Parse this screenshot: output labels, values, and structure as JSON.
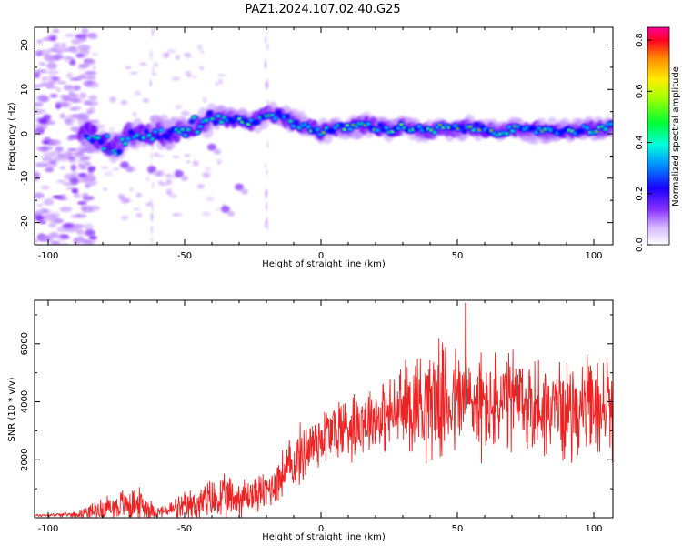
{
  "figure": {
    "title": "PAZ1.2024.107.02.40.G25"
  },
  "colors": {
    "snr_line": "#ee2222",
    "axes": "#000000",
    "colormap": [
      "#ffffff",
      "#b982ff",
      "#6a00ff",
      "#0000ff",
      "#00ffff",
      "#00ff22",
      "#ffff00",
      "#ff9900",
      "#ff0000",
      "#ff0099"
    ]
  },
  "chart_data": [
    {
      "type": "heatmap",
      "title": "PAZ1.2024.107.02.40.G25",
      "xlabel": "Height of straight line (km)",
      "ylabel": "Frequency (Hz)",
      "xlim": [
        -105,
        107
      ],
      "ylim": [
        -25,
        24
      ],
      "xticks": [
        -100,
        -50,
        0,
        50,
        100
      ],
      "yticks": [
        -20,
        -10,
        0,
        10,
        20
      ],
      "colorbar": {
        "label": "Normalized spectral amplitude",
        "range": [
          0,
          0.85
        ],
        "ticks": [
          0.0,
          0.2,
          0.4,
          0.6,
          0.8
        ]
      },
      "ridge": {
        "description_points_x": [
          -92,
          -85,
          -80,
          -75,
          -70,
          -65,
          -60,
          -55,
          -50,
          -45,
          -40,
          -35,
          -30,
          -25,
          -20,
          -15,
          -10,
          -5,
          0,
          5,
          10,
          15,
          20,
          25,
          30,
          35,
          40,
          45,
          50,
          55,
          60,
          65,
          70,
          75,
          80,
          85,
          90,
          95,
          100,
          105
        ],
        "frequency_hz": [
          1.0,
          0.5,
          -2.0,
          -3.0,
          0.0,
          -0.5,
          0.5,
          -0.5,
          1.5,
          2.0,
          3.0,
          3.5,
          3.0,
          2.5,
          4.5,
          4.0,
          2.5,
          1.5,
          0.5,
          1.0,
          1.5,
          2.0,
          1.5,
          1.0,
          1.5,
          1.0,
          0.5,
          1.5,
          1.0,
          1.5,
          1.0,
          0.5,
          1.0,
          0.5,
          1.0,
          1.0,
          0.5,
          1.0,
          1.0,
          1.5
        ]
      }
    },
    {
      "type": "line",
      "xlabel": "Height of straight line (km)",
      "ylabel": "SNR (10 * v/v)",
      "xlim": [
        -105,
        107
      ],
      "ylim": [
        0,
        7500
      ],
      "xticks": [
        -100,
        -50,
        0,
        50,
        100
      ],
      "yticks": [
        2000,
        4000,
        6000
      ],
      "series": [
        {
          "envelope_x": [
            -105,
            -90,
            -80,
            -70,
            -65,
            -60,
            -50,
            -40,
            -30,
            -25,
            -20,
            -15,
            -10,
            -5,
            0,
            5,
            10,
            15,
            20,
            25,
            30,
            35,
            40,
            45,
            50,
            55,
            60,
            65,
            70,
            75,
            80,
            85,
            90,
            95,
            100,
            105,
            107
          ],
          "envelope_mean": [
            80,
            120,
            300,
            500,
            400,
            200,
            350,
            600,
            700,
            800,
            900,
            1400,
            1900,
            2400,
            2800,
            3000,
            3200,
            3400,
            3500,
            3500,
            3800,
            4000,
            4100,
            4000,
            4100,
            4000,
            3800,
            3900,
            4000,
            3900,
            3800,
            3800,
            3700,
            3800,
            3700,
            3900,
            3600
          ],
          "envelope_amp": [
            60,
            100,
            500,
            700,
            700,
            200,
            600,
            900,
            900,
            800,
            800,
            1000,
            1200,
            1300,
            1300,
            1400,
            1500,
            1400,
            1400,
            1500,
            1800,
            2200,
            2400,
            2300,
            2400,
            2300,
            2200,
            2100,
            2200,
            2100,
            2000,
            2000,
            1900,
            2000,
            2000,
            2200,
            1800
          ],
          "peak_value": 7400
        }
      ]
    }
  ]
}
